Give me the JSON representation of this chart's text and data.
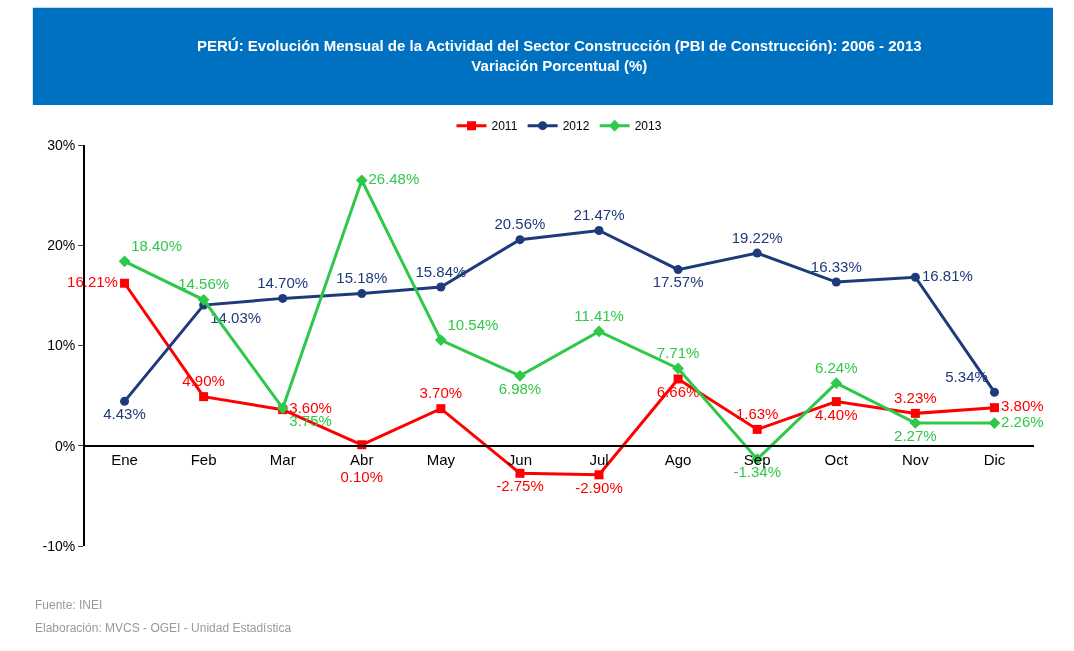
{
  "chart_data": {
    "type": "line",
    "title": "PERÚ: Evolución Mensual de la Actividad del Sector Construcción (PBI de Construcción): 2006 - 2013",
    "subtitle": "Variación Porcentual (%)",
    "categories": [
      "Ene",
      "Feb",
      "Mar",
      "Abr",
      "May",
      "Jun",
      "Jul",
      "Ago",
      "Sep",
      "Oct",
      "Nov",
      "Dic"
    ],
    "series": [
      {
        "name": "2011",
        "color": "#ff0000",
        "marker": "square",
        "values": [
          16.21,
          4.9,
          3.6,
          0.1,
          3.7,
          -2.75,
          -2.9,
          6.66,
          1.63,
          4.4,
          3.23,
          3.8
        ],
        "value_labels": [
          "16.21%",
          "4.90%",
          "3.60%",
          "0.10%",
          "3.70%",
          "-2.75%",
          "-2.90%",
          "6.66%",
          "1.63%",
          "4.40%",
          "3.23%",
          "3.80%"
        ]
      },
      {
        "name": "2012",
        "color": "#1f3a7a",
        "marker": "circle",
        "values": [
          4.43,
          14.03,
          14.7,
          15.18,
          15.84,
          20.56,
          21.47,
          17.57,
          19.22,
          16.33,
          16.81,
          5.34
        ],
        "value_labels": [
          "4.43%",
          "14.03%",
          "14.70%",
          "15.18%",
          "15.84%",
          "20.56%",
          "21.47%",
          "17.57%",
          "19.22%",
          "16.33%",
          "16.81%",
          "5.34%"
        ]
      },
      {
        "name": "2013",
        "color": "#2ec84a",
        "marker": "diamond",
        "values": [
          18.4,
          14.56,
          3.75,
          26.48,
          10.54,
          6.98,
          11.41,
          7.71,
          -1.34,
          6.24,
          2.27,
          2.26
        ],
        "value_labels": [
          "18.40%",
          "14.56%",
          "3.75%",
          "26.48%",
          "10.54%",
          "6.98%",
          "11.41%",
          "7.71%",
          "-1.34%",
          "6.24%",
          "2.27%",
          "2.26%"
        ]
      }
    ],
    "ylim": [
      -10,
      30
    ],
    "yticks": [
      {
        "value": -10,
        "label": "-10%"
      },
      {
        "value": 0,
        "label": "0%"
      },
      {
        "value": 10,
        "label": "10%"
      },
      {
        "value": 20,
        "label": "20%"
      },
      {
        "value": 30,
        "label": "30%"
      }
    ],
    "grid": false,
    "legend": "top",
    "line_style": "solid",
    "annotations": [
      "Fuente: INEI",
      "Elaboración: MVCS - OGEI - Unidad Estadística"
    ]
  }
}
